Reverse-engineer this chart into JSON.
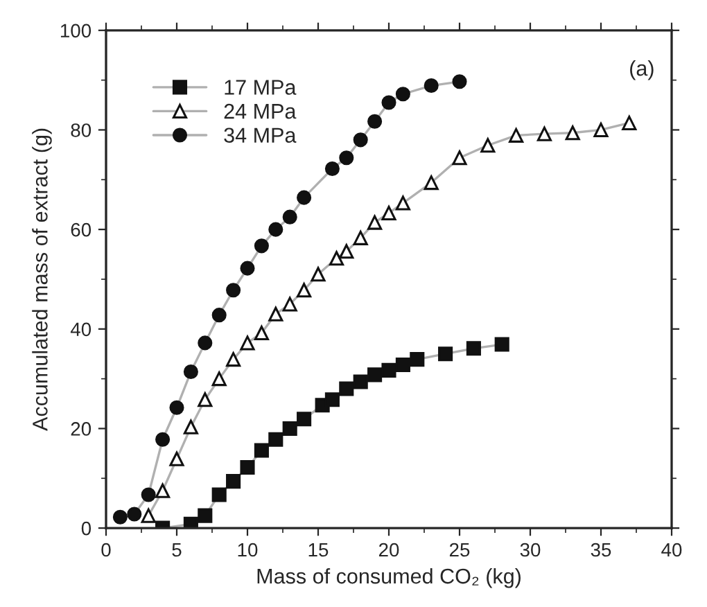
{
  "chart_data": {
    "type": "line",
    "xlabel": "Mass of consumed CO₂ (kg)",
    "ylabel": "Accumulated mass of extract (g)",
    "xlim": [
      0,
      40
    ],
    "ylim": [
      0,
      100
    ],
    "xticks": [
      0,
      5,
      10,
      15,
      20,
      25,
      30,
      35,
      40
    ],
    "yticks": [
      0,
      20,
      40,
      60,
      80,
      100
    ],
    "grid": false,
    "legend": "top left",
    "annotations": [
      "(a)"
    ],
    "series": [
      {
        "name": "17 MPa",
        "color": "#111111",
        "marker": "square",
        "x": [
          4,
          6,
          7,
          8,
          9,
          10,
          11,
          12,
          13,
          14,
          15.3,
          16,
          17,
          18,
          19,
          20,
          21,
          22,
          24,
          26,
          28
        ],
        "values": [
          0,
          0.8,
          2.5,
          6.7,
          9.4,
          12.2,
          15.6,
          17.8,
          20,
          21.9,
          24.7,
          25.8,
          28,
          29.4,
          30.8,
          31.7,
          32.8,
          33.9,
          35,
          36.1,
          36.9
        ]
      },
      {
        "name": "24 MPa",
        "color": "#111111",
        "marker": "triangle",
        "x": [
          3,
          4,
          5,
          6,
          7,
          8,
          9,
          10,
          11,
          12,
          13,
          14,
          15,
          16.3,
          17,
          18,
          19,
          20,
          21,
          23,
          25,
          27,
          29,
          31,
          33,
          35,
          37
        ],
        "values": [
          2.5,
          7.5,
          13.9,
          20.3,
          25.8,
          30,
          33.9,
          37.2,
          39.2,
          43,
          45,
          47.8,
          51,
          54.2,
          55.6,
          58.3,
          61.4,
          63.3,
          65.3,
          69.4,
          74.4,
          76.9,
          78.9,
          79.2,
          79.4,
          80,
          81.4
        ]
      },
      {
        "name": "34 MPa",
        "color": "#111111",
        "marker": "circle",
        "x": [
          1,
          2,
          3,
          4,
          5,
          6,
          7,
          8,
          9,
          10,
          11,
          12,
          13,
          14,
          16,
          17,
          18,
          19,
          20,
          21,
          23,
          25
        ],
        "values": [
          2.2,
          2.8,
          6.7,
          17.8,
          24.2,
          31.4,
          37.2,
          42.8,
          47.8,
          52.2,
          56.7,
          60,
          62.5,
          66.4,
          72.2,
          74.4,
          78,
          81.7,
          85.5,
          87.2,
          88.9,
          89.7
        ]
      }
    ]
  }
}
